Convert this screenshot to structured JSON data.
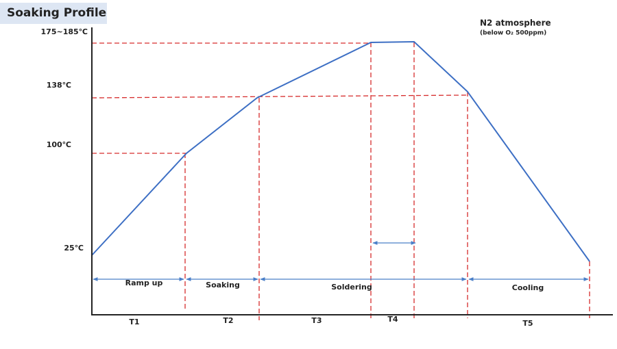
{
  "title": "Soaking Profile",
  "annotation": {
    "title": "N2 atmosphere",
    "subtitle": "(below O₂ 500ppm)"
  },
  "temperatures": [
    "175~185℃",
    "138℃",
    "100℃",
    "25℃"
  ],
  "phases": [
    "Ramp up",
    "Soaking",
    "Soldering",
    "Cooling"
  ],
  "periods": [
    "T1",
    "T2",
    "T3",
    "T4",
    "T5"
  ]
}
